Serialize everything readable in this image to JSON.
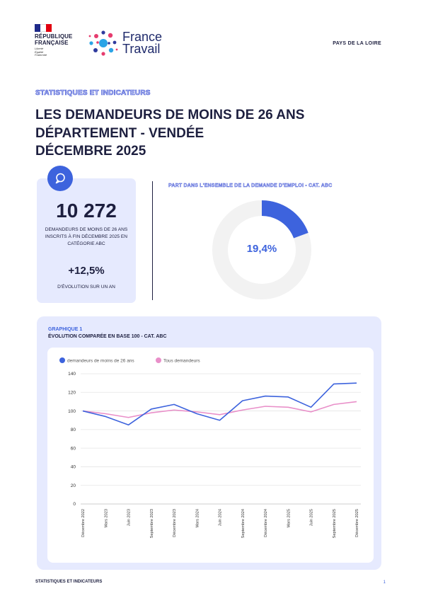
{
  "header": {
    "rf_lines": [
      "RÉPUBLIQUE",
      "FRANÇAISE"
    ],
    "rf_motto": [
      "Liberté",
      "Égalité",
      "Fraternité"
    ],
    "ft_lines": [
      "France",
      "Travail"
    ],
    "region": "PAYS DE LA LOIRE"
  },
  "kicker": "STATISTIQUES ET INDICATEURS",
  "title_lines": [
    "LES DEMANDEURS DE MOINS DE 26 ANS",
    "DÉPARTEMENT - VENDÉE",
    "DÉCEMBRE 2025"
  ],
  "kpi": {
    "value": "10 272",
    "desc": "DEMANDEURS DE MOINS DE 26 ANS INSCRITS À FIN DÉCEMBRE 2025 EN CATÉGORIE ABC",
    "evol": "+12,5%",
    "evol_label": "D'ÉVOLUTION SUR UN AN"
  },
  "share": {
    "title": "PART DANS L'ENSEMBLE DE LA DEMANDE D'EMPLOI - CAT. ABC",
    "label": "19,4%",
    "percent": 19.4,
    "fill_color": "#3d63dd",
    "track_color": "#f2f2f2"
  },
  "chart_data": {
    "type": "line",
    "kicker": "GRAPHIQUE 1",
    "title": "ÉVOLUTION COMPARÉE EN BASE 100 - CAT. ABC",
    "categories": [
      "Décembre 2022",
      "Mars 2023",
      "Juin 2023",
      "Septembre 2023",
      "Décembre 2023",
      "Mars 2024",
      "Juin 2024",
      "Septembre 2024",
      "Décembre 2024",
      "Mars 2025",
      "Juin 2025",
      "Septembre 2025",
      "Décembre 2025"
    ],
    "series": [
      {
        "name": "demandeurs de moins de 26 ans",
        "color": "#3d63dd",
        "values": [
          100,
          94,
          85,
          102,
          107,
          97,
          90,
          111,
          116,
          115,
          104,
          129,
          130
        ]
      },
      {
        "name": "Tous demandeurs",
        "color": "#e98fc9",
        "values": [
          100,
          97,
          93,
          98,
          101,
          99,
          96,
          101,
          105,
          104,
          99,
          107,
          110
        ]
      }
    ],
    "yticks": [
      0,
      20,
      40,
      60,
      80,
      100,
      120,
      140
    ],
    "ylim": [
      0,
      140
    ],
    "grid": true,
    "legend": "top-left"
  },
  "footer": {
    "left": "STATISTIQUES ET INDICATEURS",
    "page": "1"
  }
}
